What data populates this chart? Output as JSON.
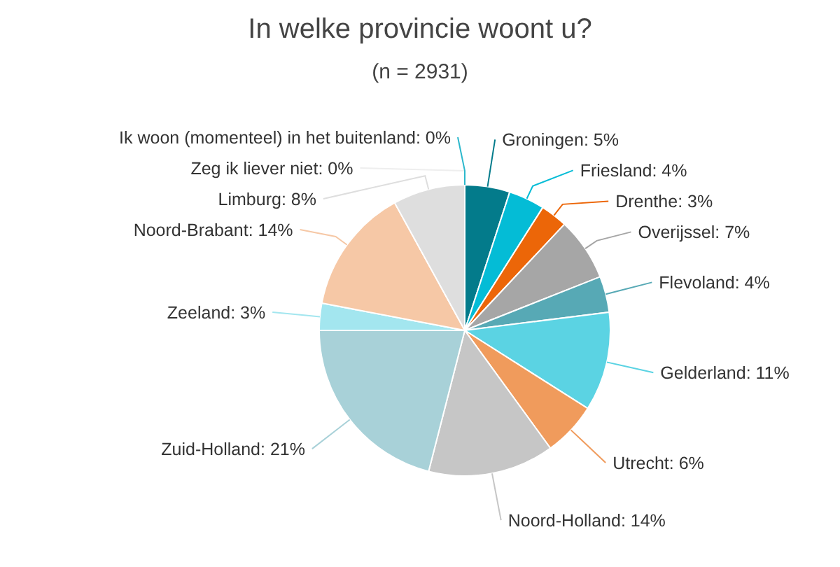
{
  "chart_data": {
    "type": "pie",
    "title": "In welke provincie woont u?",
    "subtitle": "(n = 2931)",
    "categories": [
      "Groningen",
      "Friesland",
      "Drenthe",
      "Overijssel",
      "Flevoland",
      "Gelderland",
      "Utrecht",
      "Noord-Holland",
      "Zuid-Holland",
      "Zeeland",
      "Noord-Brabant",
      "Limburg",
      "Zeg ik liever niet",
      "Ik woon (momenteel) in het buitenland"
    ],
    "values": [
      5,
      4,
      3,
      7,
      4,
      11,
      6,
      14,
      21,
      3,
      14,
      8,
      0,
      0
    ],
    "colors": [
      "#037b8b",
      "#04bcd6",
      "#ec6608",
      "#a6a6a6",
      "#57a9b5",
      "#5bd3e3",
      "#f09b5c",
      "#c6c6c6",
      "#a8d1d8",
      "#a3e6ef",
      "#f6c8a6",
      "#dedede",
      "#eeeeee",
      "#2cb8cc"
    ],
    "value_labels": [
      ": 5%",
      ": 4%",
      ": 3%",
      ": 7%",
      ": 4%",
      ": 11%",
      ": 6%",
      ": 14%",
      ": 21%",
      ": 3%",
      ": 14%",
      ": 8%",
      ": 0%",
      ": 0%"
    ]
  }
}
